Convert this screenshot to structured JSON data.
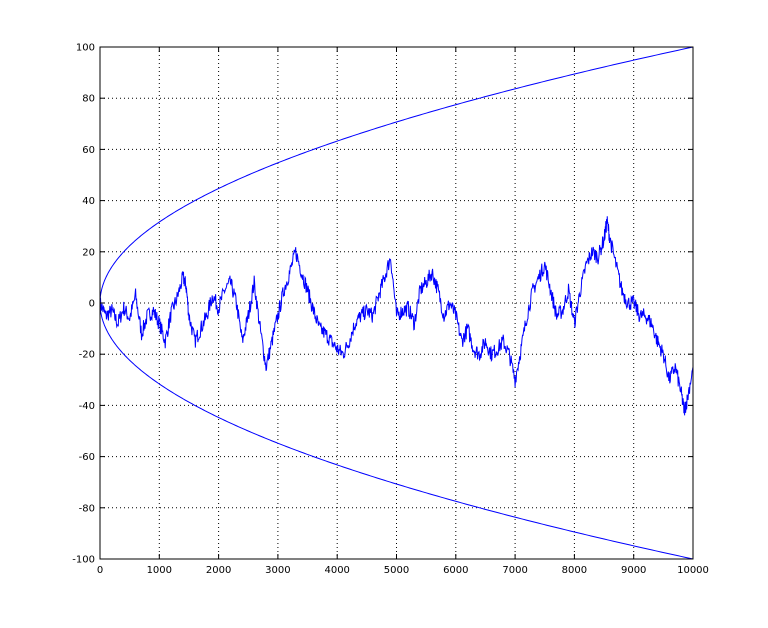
{
  "chart_data": {
    "type": "line",
    "title": "",
    "xlabel": "",
    "ylabel": "",
    "xlim": [
      0,
      10000
    ],
    "ylim": [
      -100,
      100
    ],
    "grid": true,
    "grid_style": "dotted",
    "x_ticks": [
      0,
      1000,
      2000,
      3000,
      4000,
      5000,
      6000,
      7000,
      8000,
      9000,
      10000
    ],
    "y_ticks": [
      -100,
      -80,
      -60,
      -40,
      -20,
      0,
      20,
      40,
      60,
      80,
      100
    ],
    "x_tick_labels": [
      "0",
      "1000",
      "2000",
      "3000",
      "4000",
      "5000",
      "6000",
      "7000",
      "8000",
      "9000",
      "10000"
    ],
    "y_tick_labels": [
      "-100",
      "-80",
      "-60",
      "-40",
      "-20",
      "0",
      "20",
      "40",
      "60",
      "80",
      "100"
    ],
    "line_color": "#0000ff",
    "series": [
      {
        "curve": "y = sqrt(x)",
        "points": [
          [
            0,
            0
          ],
          [
            100,
            10
          ],
          [
            500,
            22.4
          ],
          [
            1000,
            31.6
          ],
          [
            2000,
            44.7
          ],
          [
            3000,
            54.8
          ],
          [
            4000,
            63.2
          ],
          [
            5000,
            70.7
          ],
          [
            6000,
            77.5
          ],
          [
            7000,
            83.7
          ],
          [
            8000,
            89.4
          ],
          [
            9000,
            94.9
          ],
          [
            10000,
            100
          ]
        ]
      },
      {
        "curve": "y = -sqrt(x)",
        "points": [
          [
            0,
            0
          ],
          [
            100,
            -10
          ],
          [
            500,
            -22.4
          ],
          [
            1000,
            -31.6
          ],
          [
            2000,
            -44.7
          ],
          [
            3000,
            -54.8
          ],
          [
            4000,
            -63.2
          ],
          [
            5000,
            -70.7
          ],
          [
            6000,
            -77.5
          ],
          [
            7000,
            -83.7
          ],
          [
            8000,
            -89.4
          ],
          [
            9000,
            -94.9
          ],
          [
            10000,
            -100
          ]
        ]
      },
      {
        "curve": "random walk",
        "points": [
          [
            0,
            0
          ],
          [
            100,
            -5
          ],
          [
            200,
            -3
          ],
          [
            300,
            -8
          ],
          [
            400,
            -2
          ],
          [
            500,
            -6
          ],
          [
            600,
            3
          ],
          [
            700,
            -12
          ],
          [
            800,
            -5
          ],
          [
            900,
            -3
          ],
          [
            1000,
            -8
          ],
          [
            1100,
            -15
          ],
          [
            1200,
            -4
          ],
          [
            1300,
            2
          ],
          [
            1400,
            10
          ],
          [
            1450,
            7
          ],
          [
            1500,
            -5
          ],
          [
            1600,
            -15
          ],
          [
            1700,
            -10
          ],
          [
            1800,
            -5
          ],
          [
            1900,
            3
          ],
          [
            2000,
            -2
          ],
          [
            2100,
            5
          ],
          [
            2200,
            8
          ],
          [
            2300,
            0
          ],
          [
            2400,
            -15
          ],
          [
            2500,
            -5
          ],
          [
            2600,
            8
          ],
          [
            2700,
            -10
          ],
          [
            2800,
            -25
          ],
          [
            2900,
            -15
          ],
          [
            3000,
            -5
          ],
          [
            3100,
            5
          ],
          [
            3200,
            12
          ],
          [
            3300,
            20
          ],
          [
            3400,
            12
          ],
          [
            3500,
            5
          ],
          [
            3600,
            -3
          ],
          [
            3700,
            -10
          ],
          [
            3800,
            -12
          ],
          [
            3900,
            -15
          ],
          [
            4000,
            -18
          ],
          [
            4100,
            -20
          ],
          [
            4200,
            -15
          ],
          [
            4300,
            -8
          ],
          [
            4400,
            -5
          ],
          [
            4500,
            -3
          ],
          [
            4600,
            -5
          ],
          [
            4700,
            3
          ],
          [
            4800,
            10
          ],
          [
            4900,
            18
          ],
          [
            5000,
            -5
          ],
          [
            5100,
            -3
          ],
          [
            5200,
            -2
          ],
          [
            5300,
            -8
          ],
          [
            5400,
            5
          ],
          [
            5500,
            8
          ],
          [
            5600,
            12
          ],
          [
            5700,
            5
          ],
          [
            5800,
            -5
          ],
          [
            5900,
            0
          ],
          [
            6000,
            -5
          ],
          [
            6100,
            -15
          ],
          [
            6200,
            -10
          ],
          [
            6300,
            -18
          ],
          [
            6400,
            -20
          ],
          [
            6500,
            -15
          ],
          [
            6600,
            -20
          ],
          [
            6700,
            -18
          ],
          [
            6800,
            -15
          ],
          [
            6900,
            -20
          ],
          [
            7000,
            -30
          ],
          [
            7100,
            -18
          ],
          [
            7200,
            -5
          ],
          [
            7300,
            5
          ],
          [
            7400,
            10
          ],
          [
            7500,
            15
          ],
          [
            7600,
            5
          ],
          [
            7700,
            -5
          ],
          [
            7800,
            -3
          ],
          [
            7900,
            5
          ],
          [
            8000,
            -8
          ],
          [
            8100,
            5
          ],
          [
            8200,
            15
          ],
          [
            8300,
            20
          ],
          [
            8400,
            18
          ],
          [
            8500,
            25
          ],
          [
            8550,
            32
          ],
          [
            8600,
            25
          ],
          [
            8700,
            15
          ],
          [
            8800,
            5
          ],
          [
            8900,
            0
          ],
          [
            9000,
            0
          ],
          [
            9100,
            -5
          ],
          [
            9200,
            -5
          ],
          [
            9300,
            -8
          ],
          [
            9400,
            -15
          ],
          [
            9500,
            -20
          ],
          [
            9600,
            -30
          ],
          [
            9700,
            -25
          ],
          [
            9800,
            -35
          ],
          [
            9850,
            -42
          ],
          [
            9900,
            -38
          ],
          [
            10000,
            -25
          ]
        ]
      }
    ]
  }
}
